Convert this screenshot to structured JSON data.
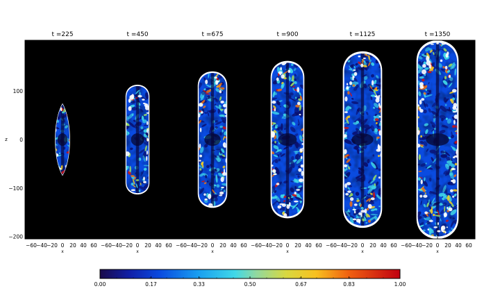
{
  "chart_data": {
    "type": "heatmap",
    "panel_titles": [
      "t =225",
      "t =450",
      "t =675",
      "t =900",
      "t =1125",
      "t =1350"
    ],
    "times": [
      225,
      450,
      675,
      900,
      1125,
      1350
    ],
    "xlabel": "x",
    "ylabel": "z",
    "x_ticks": [
      "−60",
      "−40",
      "−20",
      "0",
      "20",
      "40",
      "60"
    ],
    "x_tick_values": [
      -60,
      -40,
      -20,
      0,
      20,
      40,
      60
    ],
    "xlim": [
      -72,
      72
    ],
    "y_ticks": [
      "100",
      "0",
      "−100",
      "−200"
    ],
    "y_tick_values": [
      100,
      0,
      -100,
      -200
    ],
    "ylim": [
      -205,
      205
    ],
    "background_color": "#000000",
    "bubble_half_width": [
      11,
      15,
      19,
      22,
      26,
      28
    ],
    "bubble_top": [
      72,
      112,
      140,
      162,
      182,
      205
    ],
    "bubble_bottom": [
      -72,
      -112,
      -140,
      -162,
      -182,
      -205
    ],
    "colorbar": {
      "ticks": [
        "0.00",
        "0.17",
        "0.33",
        "0.50",
        "0.67",
        "0.83",
        "1.00"
      ],
      "tick_values": [
        0,
        0.17,
        0.33,
        0.5,
        0.67,
        0.83,
        1.0
      ],
      "range": [
        0,
        1
      ],
      "colormap": [
        {
          "v": 0.0,
          "c": "#1a0a4a"
        },
        {
          "v": 0.1,
          "c": "#1020a8"
        },
        {
          "v": 0.2,
          "c": "#0a4be0"
        },
        {
          "v": 0.33,
          "c": "#1aa0f0"
        },
        {
          "v": 0.45,
          "c": "#40d8e8"
        },
        {
          "v": 0.52,
          "c": "#90d8a0"
        },
        {
          "v": 0.62,
          "c": "#d8d840"
        },
        {
          "v": 0.72,
          "c": "#f8c020"
        },
        {
          "v": 0.83,
          "c": "#f06010"
        },
        {
          "v": 1.0,
          "c": "#c00010"
        }
      ]
    }
  }
}
